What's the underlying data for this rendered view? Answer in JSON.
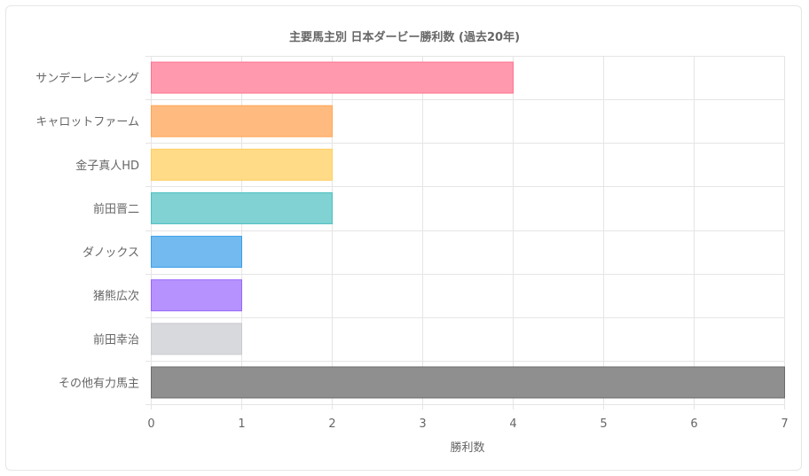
{
  "chart_data": {
    "type": "bar",
    "orientation": "horizontal",
    "title": "主要馬主別 日本ダービー勝利数 (過去20年)",
    "xlabel": "勝利数",
    "ylabel": "",
    "xlim": [
      0,
      7
    ],
    "xticks": [
      "0",
      "1",
      "2",
      "3",
      "4",
      "5",
      "6",
      "7"
    ],
    "grid": true,
    "legend": "none",
    "categories": [
      "サンデーレーシング",
      "キャロットファーム",
      "金子真人HD",
      "前田晋二",
      "ダノックス",
      "猪熊広次",
      "前田幸治",
      "その他有力馬主"
    ],
    "values": [
      4,
      2,
      2,
      2,
      1,
      1,
      1,
      7
    ],
    "colors": [
      "#ff9aae",
      "#ffbb7f",
      "#ffdb88",
      "#80d2d3",
      "#72baf0",
      "#b592fd",
      "#d8d9dc",
      "#8f8f8f"
    ],
    "border_colors": [
      "#ff7290",
      "#ffa552",
      "#ffcd5c",
      "#4bbfc0",
      "#3a9eea",
      "#9966ff",
      "#c9cbcf",
      "#6b6b6b"
    ]
  }
}
